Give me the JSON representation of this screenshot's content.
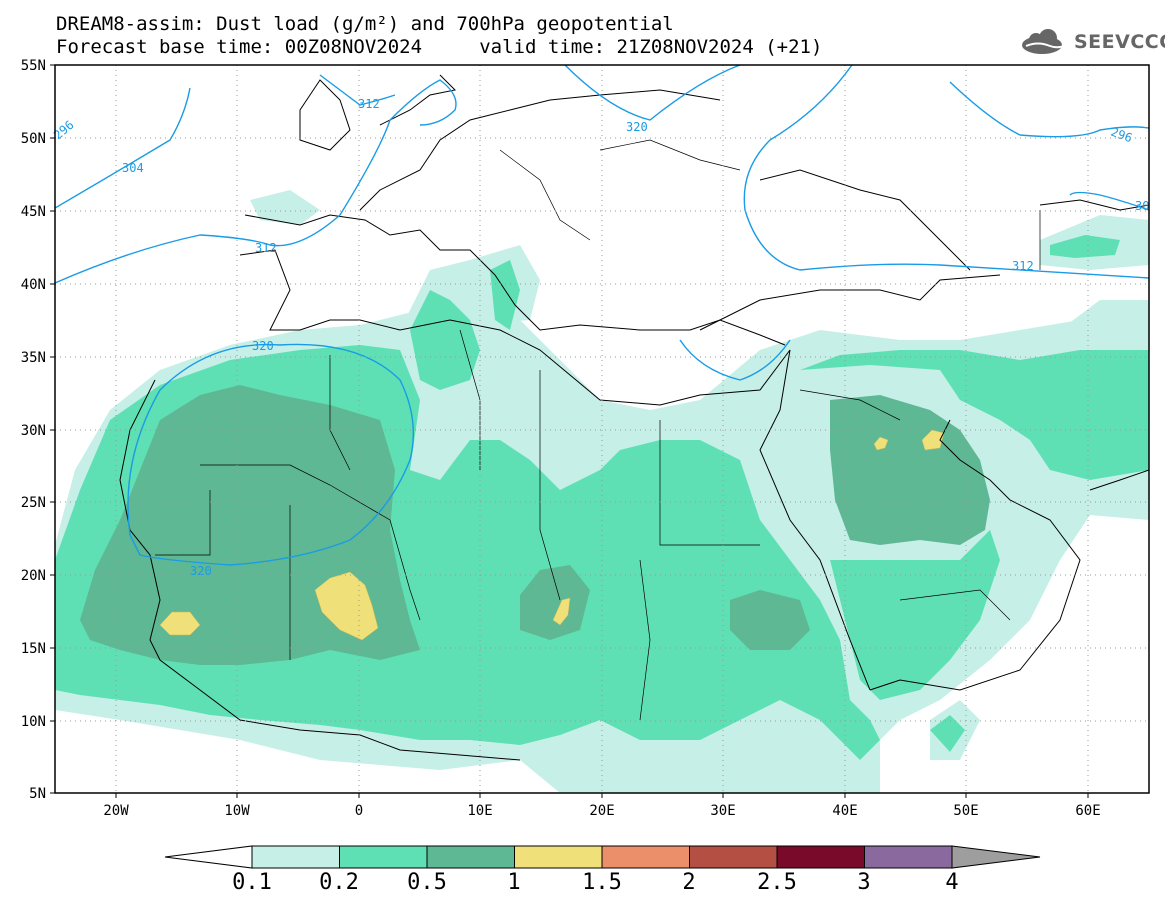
{
  "header": {
    "title_line1": "DREAM8-assim: Dust load (g/m²) and 700hPa geopotential",
    "title_line2": "Forecast base time: 00Z08NOV2024     valid time: 21Z08NOV2024 (+21)",
    "logo_text": "SEEVCCC"
  },
  "map": {
    "projection": "lat-lon",
    "lon_range": [
      -25,
      65
    ],
    "lat_range": [
      5,
      55
    ],
    "lat_ticks": [
      "55N",
      "50N",
      "45N",
      "40N",
      "35N",
      "30N",
      "25N",
      "20N",
      "15N",
      "10N",
      "5N"
    ],
    "lon_ticks": [
      "20W",
      "10W",
      "0",
      "10E",
      "20E",
      "30E",
      "40E",
      "50E",
      "60E"
    ],
    "contour_labels": [
      "296",
      "304",
      "312",
      "312",
      "320",
      "320",
      "320",
      "296",
      "30",
      "312"
    ],
    "colors": {
      "0.1": "#c6efe8",
      "0.2": "#5ee0b4",
      "0.5": "#5fb894",
      "1": "#f0e07a",
      "1.5": "#ea8f6a",
      "2": "#b34f43",
      "2.5": "#7a0a2a",
      "3": "#8a6a9e",
      "4": "#9e9e9e",
      "contour": "#1a9be6"
    }
  },
  "colorbar": {
    "labels": [
      "0.1",
      "0.2",
      "0.5",
      "1",
      "1.5",
      "2",
      "2.5",
      "3",
      "4"
    ],
    "colors": [
      "#c6efe8",
      "#5ee0b4",
      "#5fb894",
      "#f0e07a",
      "#ea8f6a",
      "#b34f43",
      "#7a0a2a",
      "#8a6a9e"
    ]
  }
}
